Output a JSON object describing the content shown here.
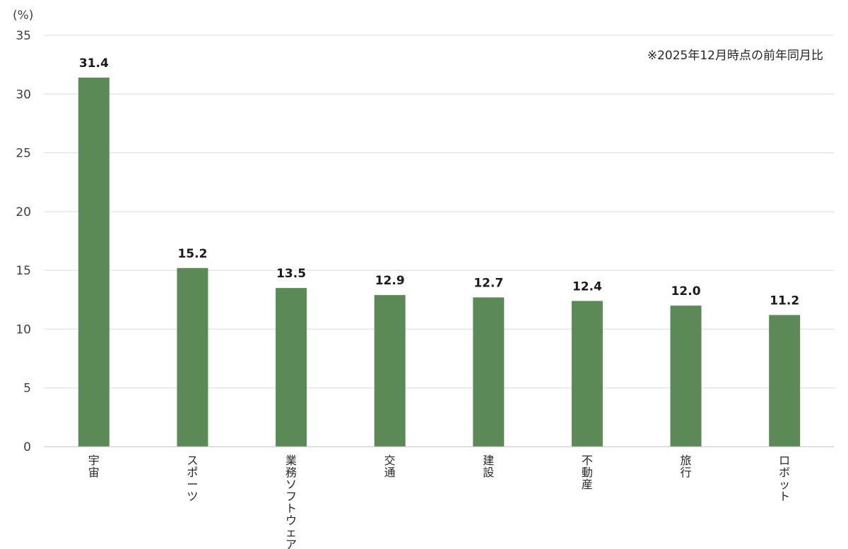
{
  "chart_data": {
    "type": "bar",
    "title": "",
    "unit_label": "(%)",
    "note": "※2025年12月時点の前年同月比",
    "categories": [
      "宇宙",
      "スポーツ",
      "業務ソフトウェア",
      "交通",
      "建設",
      "不動産",
      "旅行",
      "ロボット"
    ],
    "values": [
      31.4,
      15.2,
      13.5,
      12.9,
      12.7,
      12.4,
      12.0,
      11.2
    ],
    "value_labels": [
      "31.4",
      "15.2",
      "13.5",
      "12.9",
      "12.7",
      "12.4",
      "12.0",
      "11.2"
    ],
    "ylim": [
      0,
      35
    ],
    "yticks": [
      0,
      5,
      10,
      15,
      20,
      25,
      30,
      35
    ],
    "bar_color": "#5b8a57",
    "category_label_orientation": "vertical",
    "grid": true,
    "legend": "none"
  }
}
